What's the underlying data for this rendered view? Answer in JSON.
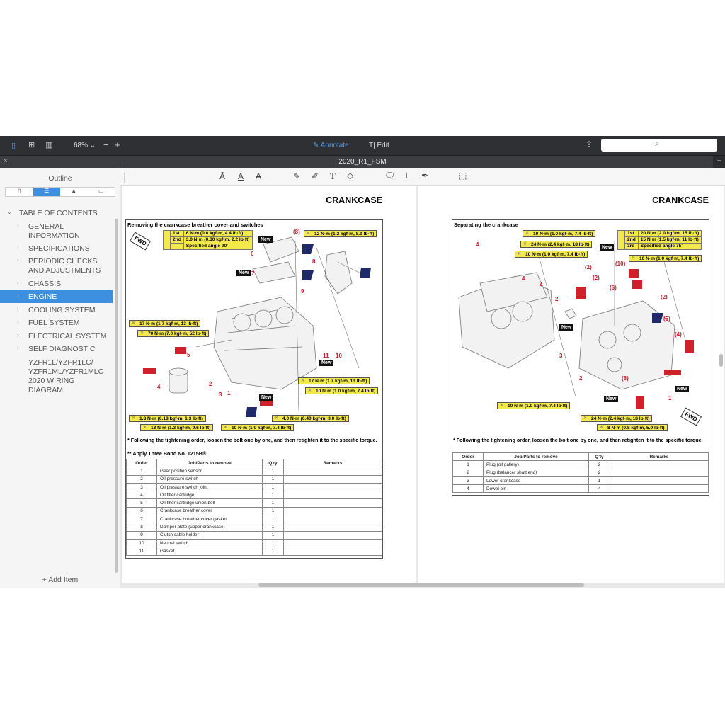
{
  "toolbar": {
    "zoom": "68%",
    "annotate": "Annotate",
    "edit": "Edit",
    "search_placeholder": ""
  },
  "tab": {
    "title": "2020_R1_FSM"
  },
  "sidebar": {
    "title": "Outline",
    "add_item": "Add Item",
    "root": "TABLE OF CONTENTS",
    "items": [
      "GENERAL INFORMATION",
      "SPECIFICATIONS",
      "PERIODIC CHECKS AND ADJUSTMENTS",
      "CHASSIS",
      "ENGINE",
      "COOLING SYSTEM",
      "FUEL SYSTEM",
      "ELECTRICAL SYSTEM",
      "SELF DIAGNOSTIC",
      "YZFR1L/YZFR1LC/ YZFR1ML/YZFR1MLC 2020 WIRING DIAGRAM"
    ],
    "selected": "ENGINE"
  },
  "left_page": {
    "title": "CRANKCASE",
    "section": "Removing the crankcase breather cover and switches",
    "torque_table": [
      [
        "1st",
        "6 N·m (0.6 kgf·m, 4.4 lb·ft)"
      ],
      [
        "2nd",
        "3.0 N·m (0.30 kgf·m, 2.2 lb·ft)"
      ],
      [
        "",
        "Specified angle 90˚"
      ]
    ],
    "torques": [
      "12 N·m (1.2 kgf·m, 8.9 lb·ft)",
      "17 N·m (1.7 kgf·m, 13 lb·ft)",
      "70 N·m (7.0 kgf·m, 52 lb·ft)",
      "17 N·m (1.7 kgf·m, 13 lb·ft)",
      "10 N·m (1.0 kgf·m, 7.4 lb·ft)",
      "4.0 N·m (0.40 kgf·m, 3.0 lb·ft)",
      "1.8 N·m (0.18 kgf·m, 1.3 lb·ft)",
      "13 N·m (1.3 kgf·m, 9.6 lb·ft)",
      "10 N·m (1.0 kgf·m, 7.4 lb·ft)"
    ],
    "new_label": "New",
    "fwd": "FWD",
    "note1": "* Following the tightening order, loosen the bolt one by one, and then retighten it to the specific torque.",
    "note2": "** Apply Three Bond No. 1215B®",
    "table": {
      "headers": [
        "Order",
        "Job/Parts to remove",
        "Q'ty",
        "Remarks"
      ],
      "rows": [
        [
          "1",
          "Gear position sensor",
          "1",
          ""
        ],
        [
          "2",
          "Oil pressure switch",
          "1",
          ""
        ],
        [
          "3",
          "Oil pressure switch joint",
          "1",
          ""
        ],
        [
          "4",
          "Oil filter cartridge",
          "1",
          ""
        ],
        [
          "5",
          "Oil filter cartridge union bolt",
          "1",
          ""
        ],
        [
          "6",
          "Crankcase breather cover",
          "1",
          ""
        ],
        [
          "7",
          "Crankcase breather cover gasket",
          "1",
          ""
        ],
        [
          "8",
          "Damper plate (upper crankcase)",
          "1",
          ""
        ],
        [
          "9",
          "Clutch cable holder",
          "1",
          ""
        ],
        [
          "10",
          "Neutral switch",
          "1",
          ""
        ],
        [
          "11",
          "Gasket",
          "1",
          ""
        ]
      ]
    }
  },
  "right_page": {
    "title": "CRANKCASE",
    "section": "Separating the crankcase",
    "torque_table": [
      [
        "1st",
        "20 N·m (2.0 kgf·m, 15 lb·ft)"
      ],
      [
        "2nd",
        "15 N·m (1.5 kgf·m, 11 lb·ft)"
      ],
      [
        "3rd",
        "Specified angle 75˚"
      ]
    ],
    "torques": [
      "10 N·m (1.0 kgf·m, 7.4 lb·ft)",
      "24 N·m (2.4 kgf·m, 18 lb·ft)",
      "10 N·m (1.0 kgf·m, 7.4 lb·ft)",
      "10 N·m (1.0 kgf·m, 7.4 lb·ft)",
      "10 N·m (1.0 kgf·m, 7.4 lb·ft)",
      "24 N·m (2.4 kgf·m, 18 lb·ft)",
      "8 N·m (0.8 kgf·m, 5.9 lb·ft)"
    ],
    "new_label": "New",
    "fwd": "FWD",
    "note1": "* Following the tightening order, loosen the bolt one by one, and then retighten it to the specific torque.",
    "table": {
      "headers": [
        "Order",
        "Job/Parts to remove",
        "Q'ty",
        "Remarks"
      ],
      "rows": [
        [
          "1",
          "Plug (oil gallery)",
          "2",
          ""
        ],
        [
          "2",
          "Plug (balancer shaft end)",
          "2",
          ""
        ],
        [
          "3",
          "Lower crankcase",
          "1",
          ""
        ],
        [
          "4",
          "Dowel pin",
          "4",
          ""
        ]
      ]
    }
  }
}
